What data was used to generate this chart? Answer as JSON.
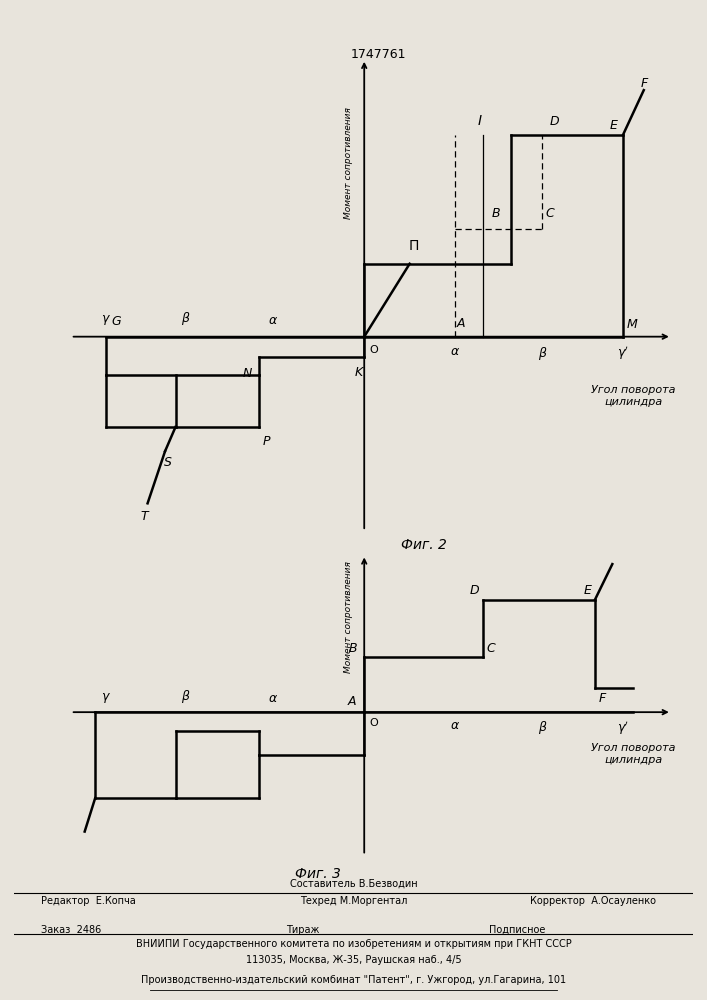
{
  "patent_number": "1747761",
  "fig1_caption": "Фиг. 2",
  "fig2_caption": "Фиг. 3",
  "ylabel_text": "Момент сопротивления",
  "xlabel_text": "Угол поворота\nцилиндра",
  "bg_color": "#e8e4dc",
  "footer_composer": "Составитель В.Безводин",
  "footer_editor": "Редактор  Е.Копча",
  "footer_tech": "Техред М.Моргентал",
  "footer_corrector": "Корректор  А.Осауленко",
  "footer_order": "Заказ  2486",
  "footer_tirazh": "Тираж",
  "footer_podpisnoe": "Подписное",
  "footer_org": "ВНИИПИ Государственного комитета по изобретениям и открытиям при ГКНТ СССР",
  "footer_addr": "113035, Москва, Ж-35, Раушская наб., 4/5",
  "footer_publisher": "Производственно-издательский комбинат \"Патент\", г. Ужгород, ул.Гагарина, 101"
}
